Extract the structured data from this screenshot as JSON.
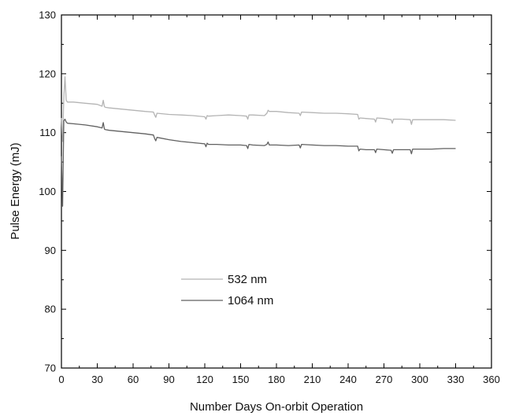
{
  "chart_data": {
    "type": "line",
    "title": "",
    "xlabel": "Number Days On-orbit Operation",
    "ylabel": "Pulse Energy (mJ)",
    "xlim": [
      0,
      360
    ],
    "ylim": [
      70,
      130
    ],
    "x_ticks": [
      0,
      30,
      60,
      90,
      120,
      150,
      180,
      210,
      240,
      270,
      300,
      330,
      360
    ],
    "y_ticks": [
      70,
      80,
      90,
      100,
      110,
      120,
      130
    ],
    "grid": false,
    "legend_position": "center-left",
    "series": [
      {
        "name": "532 nm",
        "color": "#b4b4b4",
        "x": [
          0,
          1,
          2,
          3,
          4,
          5,
          10,
          20,
          30,
          34,
          35,
          36,
          37,
          40,
          50,
          60,
          70,
          77,
          78,
          79,
          80,
          90,
          100,
          110,
          120,
          121,
          122,
          123,
          130,
          140,
          150,
          155,
          156,
          157,
          160,
          170,
          172,
          173,
          174,
          180,
          190,
          199,
          200,
          201,
          210,
          220,
          230,
          240,
          248,
          249,
          250,
          255,
          262,
          263,
          264,
          270,
          276,
          277,
          278,
          285,
          292,
          293,
          294,
          300,
          310,
          320,
          330
        ],
        "y": [
          112.5,
          108.5,
          116.0,
          119.5,
          115.5,
          115.2,
          115.2,
          115.0,
          114.8,
          114.5,
          115.5,
          114.4,
          114.3,
          114.2,
          114.0,
          113.8,
          113.6,
          113.5,
          113.0,
          112.6,
          113.3,
          113.1,
          113.0,
          112.9,
          112.7,
          112.3,
          112.9,
          112.8,
          112.9,
          113.0,
          112.9,
          112.8,
          112.3,
          113.0,
          113.0,
          112.9,
          113.3,
          113.8,
          113.6,
          113.6,
          113.4,
          113.3,
          112.9,
          113.5,
          113.4,
          113.3,
          113.3,
          113.2,
          113.1,
          112.3,
          112.5,
          112.4,
          112.3,
          111.8,
          112.5,
          112.4,
          112.2,
          111.6,
          112.3,
          112.3,
          112.2,
          111.4,
          112.2,
          112.2,
          112.2,
          112.2,
          112.1
        ]
      },
      {
        "name": "1064 nm",
        "color": "#606060",
        "x": [
          0,
          1,
          2,
          3,
          4,
          5,
          10,
          20,
          30,
          34,
          35,
          36,
          37,
          40,
          50,
          60,
          70,
          77,
          78,
          79,
          80,
          90,
          100,
          110,
          120,
          121,
          122,
          123,
          130,
          140,
          150,
          155,
          156,
          157,
          160,
          170,
          172,
          173,
          174,
          180,
          190,
          199,
          200,
          201,
          210,
          220,
          230,
          240,
          248,
          249,
          250,
          255,
          262,
          263,
          264,
          270,
          276,
          277,
          278,
          285,
          292,
          293,
          294,
          300,
          310,
          320,
          330
        ],
        "y": [
          106.0,
          97.5,
          112.0,
          112.3,
          111.8,
          111.6,
          111.5,
          111.3,
          111.0,
          110.8,
          111.7,
          110.6,
          110.5,
          110.4,
          110.2,
          110.0,
          109.8,
          109.6,
          109.0,
          108.6,
          109.2,
          108.8,
          108.5,
          108.3,
          108.1,
          107.6,
          108.2,
          108.0,
          108.0,
          107.9,
          107.9,
          107.8,
          107.3,
          108.0,
          107.9,
          107.8,
          108.0,
          108.4,
          107.9,
          107.9,
          107.8,
          107.9,
          107.4,
          108.0,
          107.9,
          107.8,
          107.8,
          107.7,
          107.7,
          106.9,
          107.2,
          107.1,
          107.1,
          106.6,
          107.2,
          107.1,
          107.0,
          106.5,
          107.1,
          107.1,
          107.1,
          106.4,
          107.2,
          107.2,
          107.2,
          107.3,
          107.3
        ]
      }
    ]
  }
}
